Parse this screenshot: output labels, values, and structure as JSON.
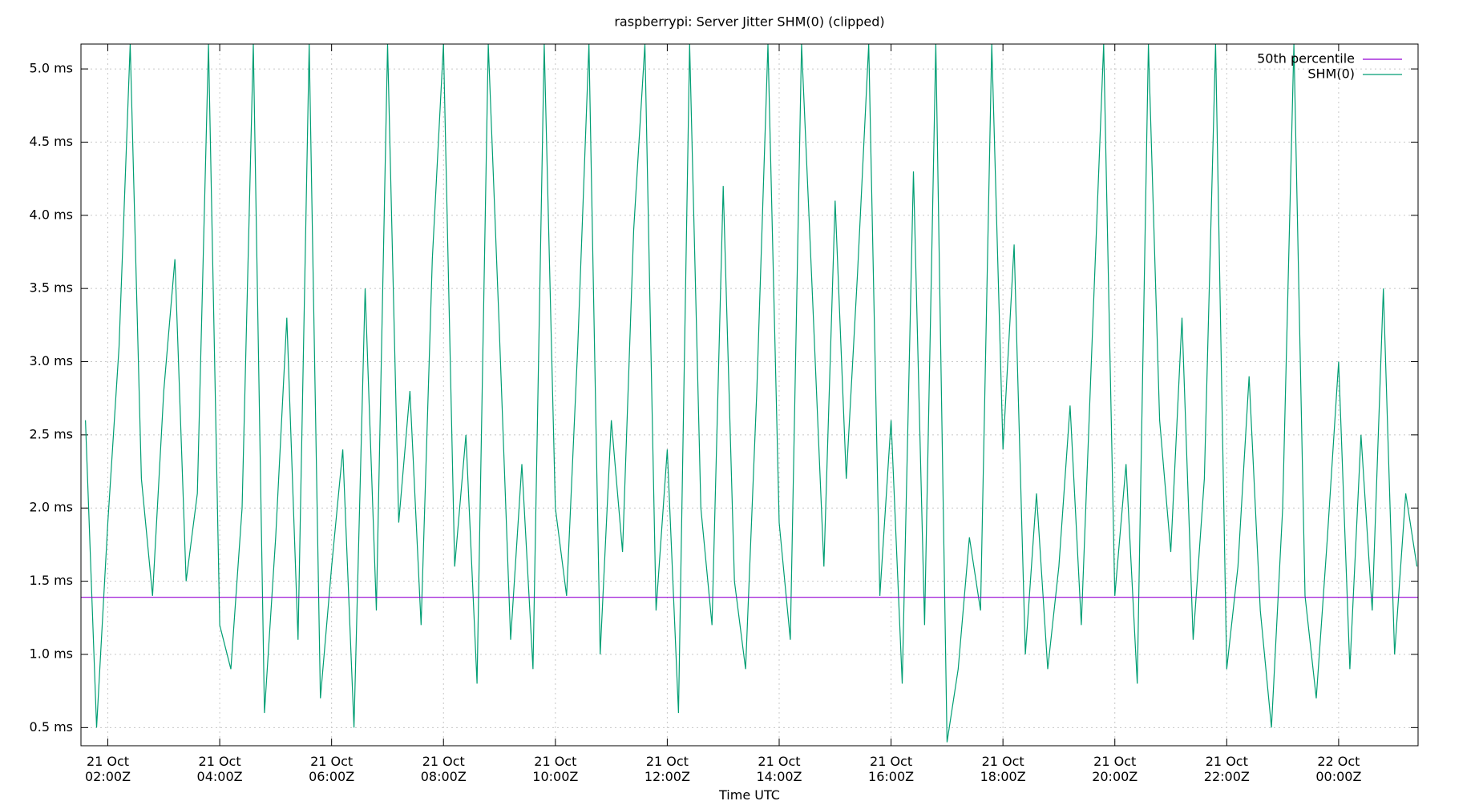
{
  "chart_data": {
    "type": "line",
    "title": "raspberrypi: Server Jitter SHM(0) (clipped)",
    "xlabel": "Time UTC",
    "xlim": [
      1.52,
      25.42
    ],
    "ylim": [
      0.376,
      5.17
    ],
    "grid": true,
    "legend": "top-right",
    "xticks": [
      {
        "value": 2,
        "label": [
          "21 Oct",
          "02:00Z"
        ]
      },
      {
        "value": 4,
        "label": [
          "21 Oct",
          "04:00Z"
        ]
      },
      {
        "value": 6,
        "label": [
          "21 Oct",
          "06:00Z"
        ]
      },
      {
        "value": 8,
        "label": [
          "21 Oct",
          "08:00Z"
        ]
      },
      {
        "value": 10,
        "label": [
          "21 Oct",
          "10:00Z"
        ]
      },
      {
        "value": 12,
        "label": [
          "21 Oct",
          "12:00Z"
        ]
      },
      {
        "value": 14,
        "label": [
          "21 Oct",
          "14:00Z"
        ]
      },
      {
        "value": 16,
        "label": [
          "21 Oct",
          "16:00Z"
        ]
      },
      {
        "value": 18,
        "label": [
          "21 Oct",
          "18:00Z"
        ]
      },
      {
        "value": 20,
        "label": [
          "21 Oct",
          "20:00Z"
        ]
      },
      {
        "value": 22,
        "label": [
          "21 Oct",
          "22:00Z"
        ]
      },
      {
        "value": 24,
        "label": [
          "22 Oct",
          "00:00Z"
        ]
      }
    ],
    "yticks": [
      {
        "value": 0.5,
        "label": "0.5 ms"
      },
      {
        "value": 1.0,
        "label": "1.0 ms"
      },
      {
        "value": 1.5,
        "label": "1.5 ms"
      },
      {
        "value": 2.0,
        "label": "2.0 ms"
      },
      {
        "value": 2.5,
        "label": "2.5 ms"
      },
      {
        "value": 3.0,
        "label": "3.0 ms"
      },
      {
        "value": 3.5,
        "label": "3.5 ms"
      },
      {
        "value": 4.0,
        "label": "4.0 ms"
      },
      {
        "value": 4.5,
        "label": "4.5 ms"
      },
      {
        "value": 5.0,
        "label": "5.0 ms"
      }
    ],
    "series": [
      {
        "name": "50th percentile",
        "color": "#9400d3",
        "x": [
          1.52,
          25.42
        ],
        "values": [
          1.39,
          1.39
        ]
      },
      {
        "name": "SHM(0)",
        "color": "#009e73",
        "x": [
          1.6,
          1.8,
          2.0,
          2.2,
          2.4,
          2.6,
          2.8,
          3.0,
          3.2,
          3.4,
          3.6,
          3.8,
          4.0,
          4.2,
          4.4,
          4.6,
          4.8,
          5.0,
          5.2,
          5.4,
          5.6,
          5.8,
          6.0,
          6.2,
          6.4,
          6.6,
          6.8,
          7.0,
          7.2,
          7.4,
          7.6,
          7.8,
          8.0,
          8.2,
          8.4,
          8.6,
          8.8,
          9.0,
          9.2,
          9.4,
          9.6,
          9.8,
          10.0,
          10.2,
          10.4,
          10.6,
          10.8,
          11.0,
          11.2,
          11.4,
          11.6,
          11.8,
          12.0,
          12.2,
          12.4,
          12.6,
          12.8,
          13.0,
          13.2,
          13.4,
          13.6,
          13.8,
          14.0,
          14.2,
          14.4,
          14.6,
          14.8,
          15.0,
          15.2,
          15.4,
          15.6,
          15.8,
          16.0,
          16.2,
          16.4,
          16.6,
          16.8,
          17.0,
          17.2,
          17.4,
          17.6,
          17.8,
          18.0,
          18.2,
          18.4,
          18.6,
          18.8,
          19.0,
          19.2,
          19.4,
          19.6,
          19.8,
          20.0,
          20.2,
          20.4,
          20.6,
          20.8,
          21.0,
          21.2,
          21.4,
          21.6,
          21.8,
          22.0,
          22.2,
          22.4,
          22.6,
          22.8,
          23.0,
          23.2,
          23.4,
          23.6,
          23.8,
          24.0,
          24.2,
          24.4,
          24.6,
          24.8,
          25.0,
          25.2,
          25.4
        ],
        "values": [
          2.6,
          0.5,
          1.9,
          3.1,
          5.17,
          2.2,
          1.4,
          2.8,
          3.7,
          1.5,
          2.1,
          5.17,
          1.2,
          0.9,
          2.0,
          5.17,
          0.6,
          1.8,
          3.3,
          1.1,
          5.17,
          0.7,
          1.6,
          2.4,
          0.5,
          3.5,
          1.3,
          5.17,
          1.9,
          2.8,
          1.2,
          3.7,
          5.17,
          1.6,
          2.5,
          0.8,
          5.17,
          3.2,
          1.1,
          2.3,
          0.9,
          5.17,
          2.0,
          1.4,
          3.1,
          5.17,
          1.0,
          2.6,
          1.7,
          3.9,
          5.17,
          1.3,
          2.4,
          0.6,
          5.17,
          2.0,
          1.2,
          4.2,
          1.5,
          0.9,
          2.8,
          5.17,
          1.9,
          1.1,
          5.17,
          3.4,
          1.6,
          4.1,
          2.2,
          3.6,
          5.17,
          1.4,
          2.6,
          0.8,
          4.3,
          1.2,
          5.17,
          0.4,
          0.9,
          1.8,
          1.3,
          5.17,
          2.4,
          3.8,
          1.0,
          2.1,
          0.9,
          1.6,
          2.7,
          1.2,
          3.2,
          5.17,
          1.4,
          2.3,
          0.8,
          5.17,
          2.6,
          1.7,
          3.3,
          1.1,
          2.2,
          5.17,
          0.9,
          1.6,
          2.9,
          1.3,
          0.5,
          2.0,
          5.17,
          1.4,
          0.7,
          1.8,
          3.0,
          0.9,
          2.5,
          1.3,
          3.5,
          1.0,
          2.1,
          1.6
        ]
      }
    ]
  }
}
